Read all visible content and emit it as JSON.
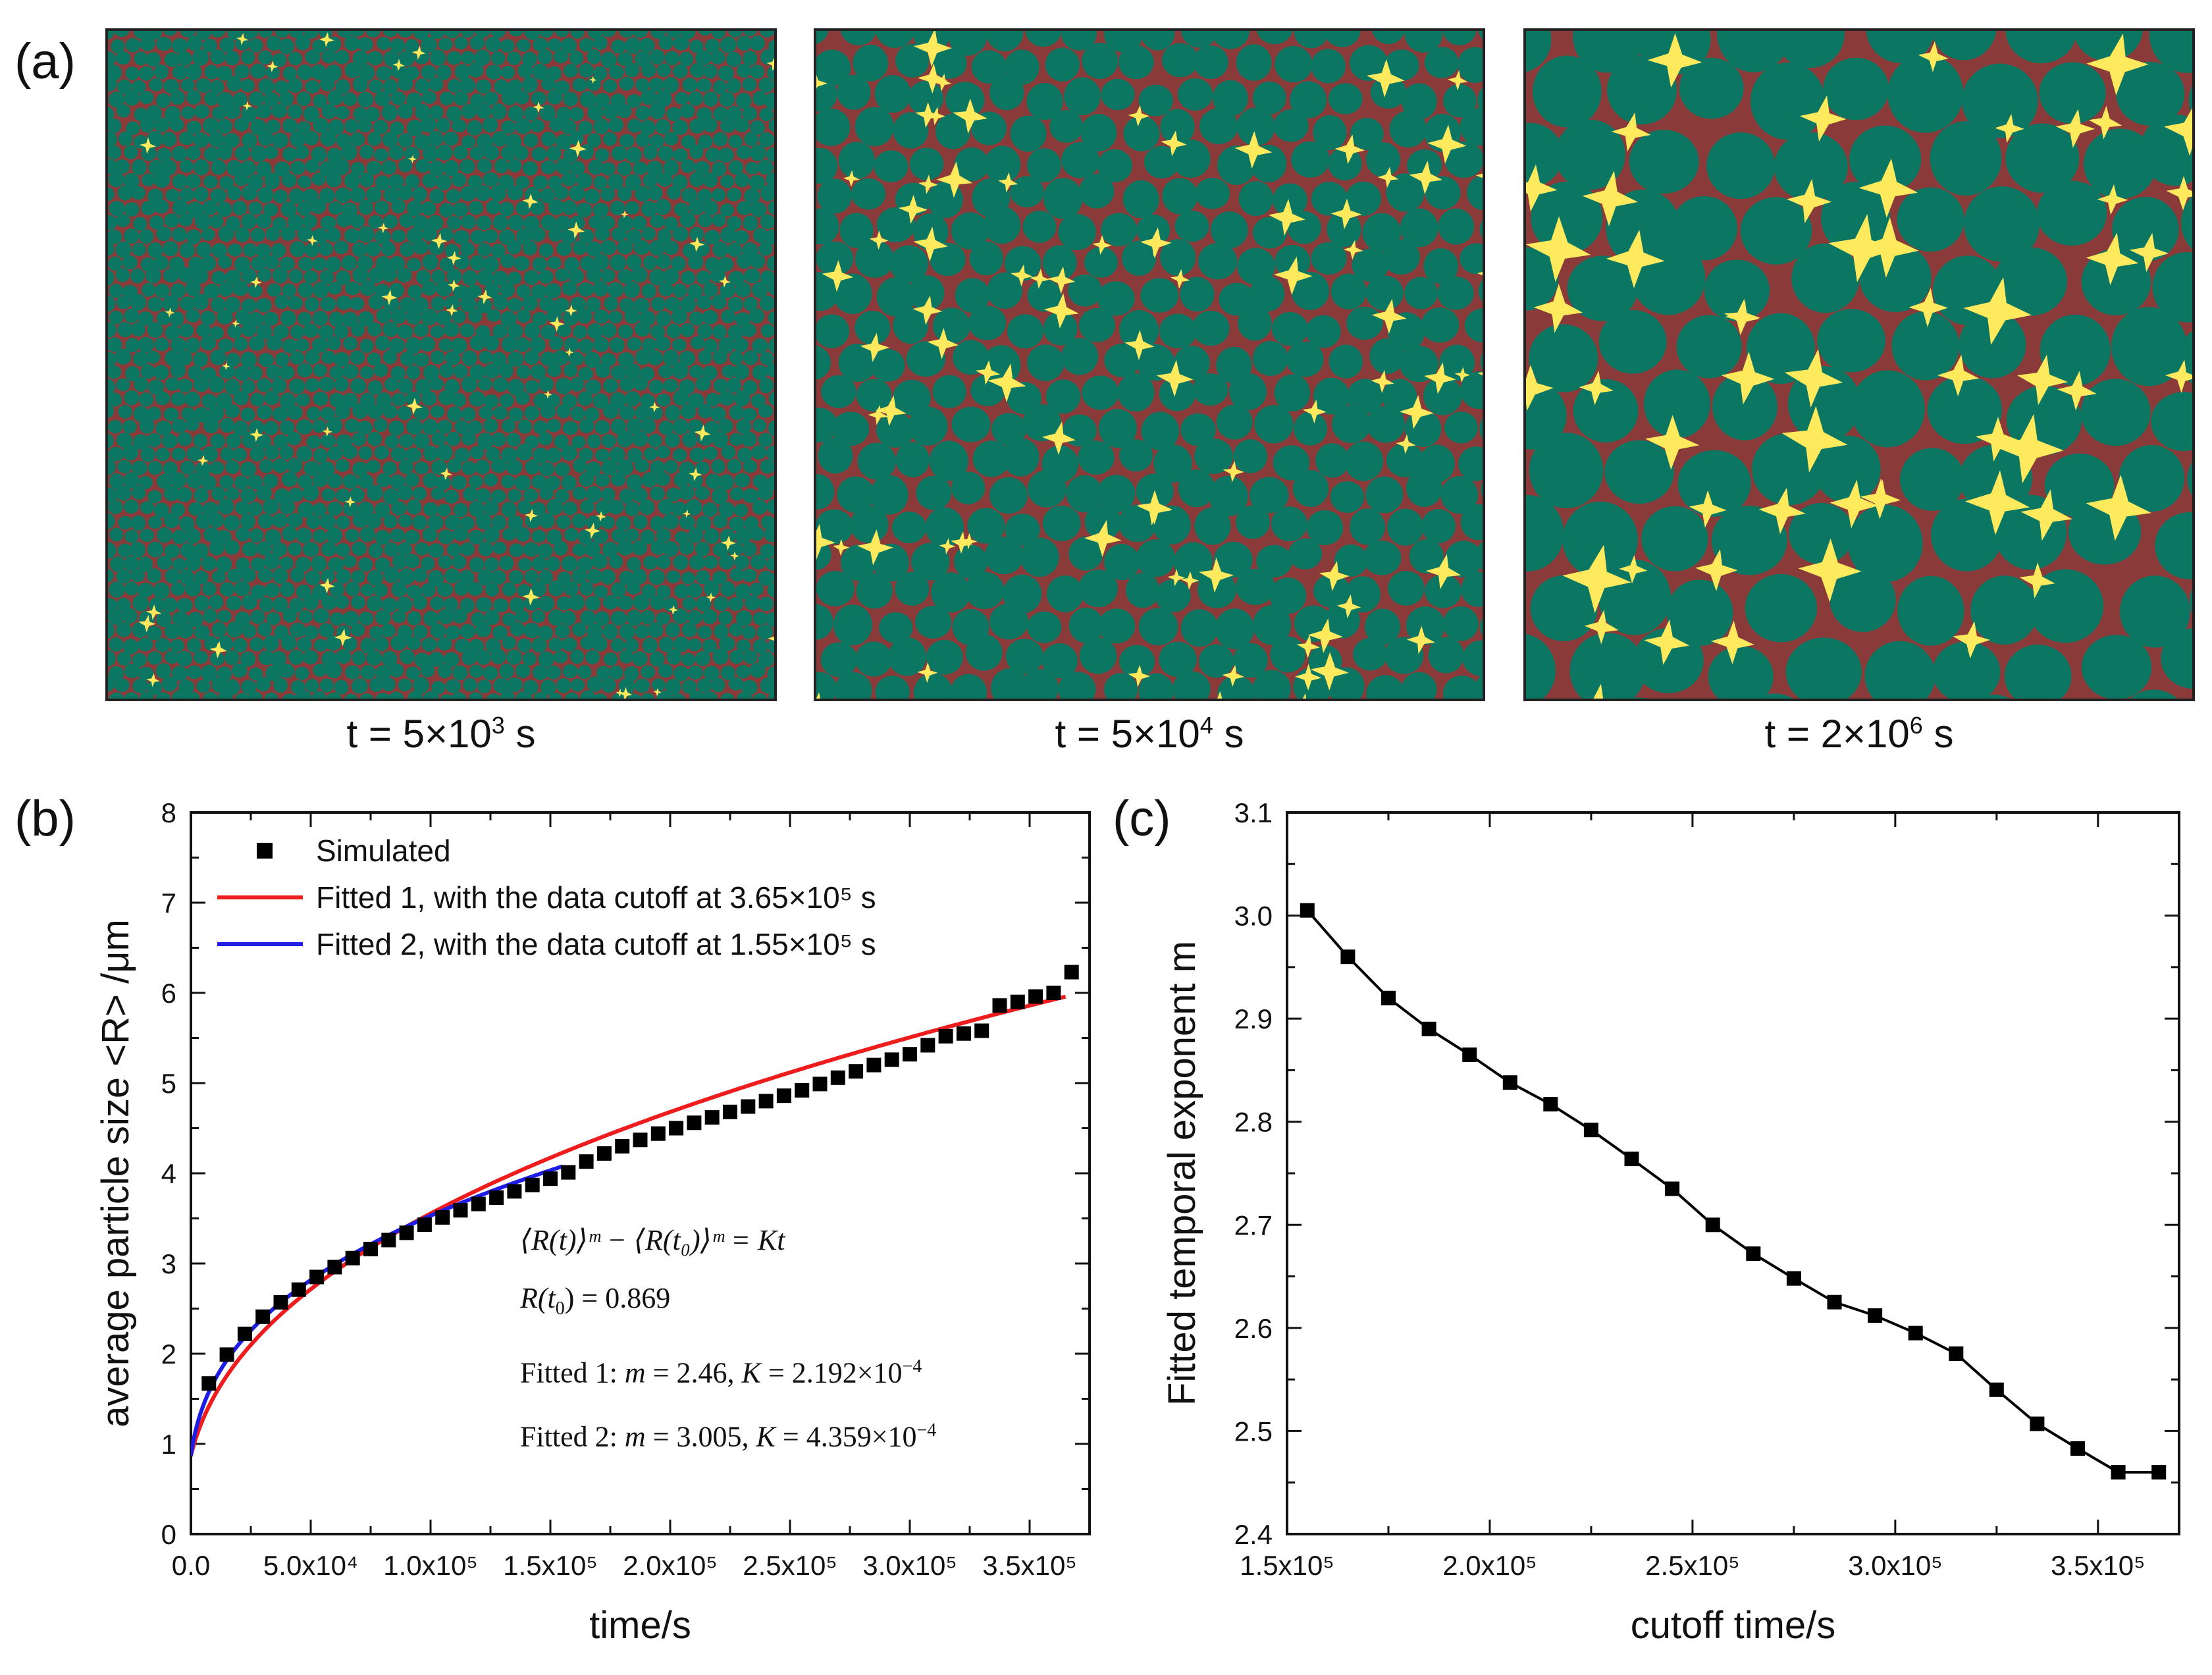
{
  "panel_a": {
    "letter": "(a)",
    "captions": [
      {
        "prefix": "t = 5×10",
        "exp": "3",
        "suffix": " s"
      },
      {
        "prefix": "t = 5×10",
        "exp": "4",
        "suffix": " s"
      },
      {
        "prefix": "t = 2×10",
        "exp": "6",
        "suffix": " s"
      }
    ],
    "colors": {
      "matrix": "#0b7762",
      "boundary": "#8b3a3a",
      "pore": "#ffe95c"
    }
  },
  "panel_b": {
    "letter": "(b)",
    "equation": {
      "line1": "⟨R(t)⟩ᵐ − ⟨R(t₀)⟩ᵐ = Kt",
      "line2_lhs": "R(t",
      "line2_sub": "0",
      "line2_rhs": ") = 0.869",
      "line3_label": "Fitted 1: ",
      "line3_m": "m",
      "line3_eq": " = 2.46, ",
      "line3_k": "K",
      "line3_val": " = 2.192×10",
      "line3_exp": "−4",
      "line4_label": "Fitted 2: ",
      "line4_m": "m",
      "line4_eq": " = 3.005, ",
      "line4_k": "K",
      "line4_val": " = 4.359×10",
      "line4_exp": "−4"
    }
  },
  "panel_c": {
    "letter": "(c)"
  },
  "chart_data": [
    {
      "id": "b",
      "type": "scatter",
      "xlabel": "time/s",
      "ylabel": "average particle size <R> /μm",
      "xlim": [
        0,
        375000
      ],
      "ylim": [
        0,
        8
      ],
      "xticks": [
        {
          "v": 0,
          "label": "0.0"
        },
        {
          "v": 50000,
          "label": "5.0x10⁴"
        },
        {
          "v": 100000,
          "label": "1.0x10⁵"
        },
        {
          "v": 150000,
          "label": "1.5x10⁵"
        },
        {
          "v": 200000,
          "label": "2.0x10⁵"
        },
        {
          "v": 250000,
          "label": "2.5x10⁵"
        },
        {
          "v": 300000,
          "label": "3.0x10⁵"
        },
        {
          "v": 350000,
          "label": "3.5x10⁵"
        }
      ],
      "yticks": [
        {
          "v": 0,
          "label": "0"
        },
        {
          "v": 1,
          "label": "1"
        },
        {
          "v": 2,
          "label": "2"
        },
        {
          "v": 3,
          "label": "3"
        },
        {
          "v": 4,
          "label": "4"
        },
        {
          "v": 5,
          "label": "5"
        },
        {
          "v": 6,
          "label": "6"
        },
        {
          "v": 7,
          "label": "7"
        },
        {
          "v": 8,
          "label": "8"
        }
      ],
      "legend": [
        {
          "label": "Simulated",
          "kind": "marker",
          "color": "#000000"
        },
        {
          "label": "Fitted 1, with the data cutoff at 3.65×10⁵ s",
          "kind": "line",
          "color": "#ee1c1c"
        },
        {
          "label": "Fitted 2, with the data cutoff at 1.55×10⁵ s",
          "kind": "line",
          "color": "#1d1de6"
        }
      ],
      "series": [
        {
          "name": "Simulated",
          "kind": "scatter",
          "color": "#000000",
          "x": [
            7500,
            15000,
            22500,
            30000,
            37500,
            45000,
            52500,
            60000,
            67500,
            75000,
            82500,
            90000,
            97500,
            105000,
            112500,
            120000,
            127500,
            135000,
            142500,
            150000,
            157500,
            165000,
            172500,
            180000,
            187500,
            195000,
            202500,
            210000,
            217500,
            225000,
            232500,
            240000,
            247500,
            255000,
            262500,
            270000,
            277500,
            285000,
            292500,
            300000,
            307500,
            315000,
            322500,
            330000,
            337500,
            345000,
            352500,
            360000,
            367500
          ],
          "y": [
            1.67,
            1.99,
            2.22,
            2.41,
            2.57,
            2.71,
            2.85,
            2.96,
            3.06,
            3.16,
            3.26,
            3.34,
            3.43,
            3.51,
            3.59,
            3.66,
            3.73,
            3.8,
            3.87,
            3.94,
            4.01,
            4.13,
            4.22,
            4.3,
            4.37,
            4.44,
            4.5,
            4.56,
            4.62,
            4.68,
            4.74,
            4.8,
            4.86,
            4.92,
            4.99,
            5.06,
            5.13,
            5.2,
            5.26,
            5.32,
            5.42,
            5.52,
            5.55,
            5.58,
            5.86,
            5.9,
            5.96,
            6.0,
            6.23
          ]
        },
        {
          "name": "Fitted 1",
          "kind": "fit",
          "color": "#ee1c1c",
          "m": 2.46,
          "K": 0.0002192,
          "R0": 0.869,
          "xmin": 0,
          "xmax": 365000
        },
        {
          "name": "Fitted 2",
          "kind": "fit",
          "color": "#1d1de6",
          "m": 3.005,
          "K": 0.0004359,
          "R0": 0.869,
          "xmin": 0,
          "xmax": 155000
        }
      ]
    },
    {
      "id": "c",
      "type": "line",
      "xlabel": "cutoff time/s",
      "ylabel": "Fitted temporal exponent m",
      "xlim": [
        150000,
        370000
      ],
      "ylim": [
        2.4,
        3.1
      ],
      "xticks": [
        {
          "v": 150000,
          "label": "1.5x10⁵"
        },
        {
          "v": 200000,
          "label": "2.0x10⁵"
        },
        {
          "v": 250000,
          "label": "2.5x10⁵"
        },
        {
          "v": 300000,
          "label": "3.0x10⁵"
        },
        {
          "v": 350000,
          "label": "3.5x10⁵"
        }
      ],
      "yticks": [
        {
          "v": 2.4,
          "label": "2.4"
        },
        {
          "v": 2.5,
          "label": "2.5"
        },
        {
          "v": 2.6,
          "label": "2.6"
        },
        {
          "v": 2.7,
          "label": "2.7"
        },
        {
          "v": 2.8,
          "label": "2.8"
        },
        {
          "v": 2.9,
          "label": "2.9"
        },
        {
          "v": 3.0,
          "label": "3.0"
        },
        {
          "v": 3.1,
          "label": "3.1"
        }
      ],
      "series": [
        {
          "name": "Fitted temporal exponent",
          "color": "#000000",
          "x": [
            155000,
            165000,
            175000,
            185000,
            195000,
            205000,
            215000,
            225000,
            235000,
            245000,
            255000,
            265000,
            275000,
            285000,
            295000,
            305000,
            315000,
            325000,
            335000,
            345000,
            355000,
            365000
          ],
          "y": [
            3.005,
            2.96,
            2.92,
            2.89,
            2.865,
            2.838,
            2.817,
            2.792,
            2.764,
            2.735,
            2.7,
            2.672,
            2.648,
            2.625,
            2.612,
            2.595,
            2.575,
            2.54,
            2.507,
            2.483,
            2.46,
            2.46
          ]
        }
      ]
    }
  ]
}
